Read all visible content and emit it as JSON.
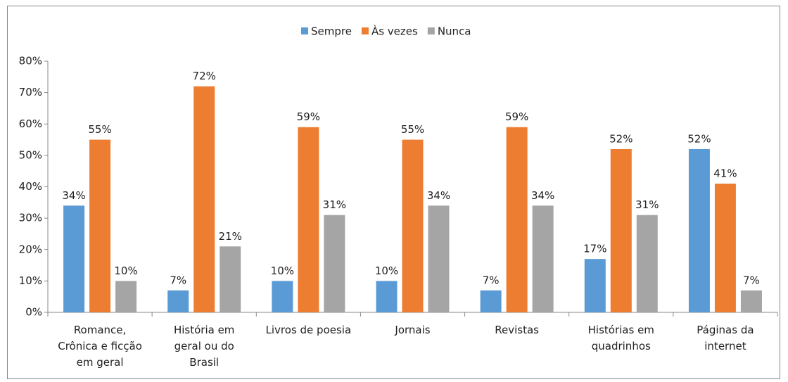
{
  "chart_data": {
    "type": "bar",
    "categories": [
      "Romance, Crônica e ficção em geral",
      "História em geral ou do Brasil",
      "Livros de poesia",
      "Jornais",
      "Revistas",
      "Histórias em quadrinhos",
      "Páginas da internet"
    ],
    "series": [
      {
        "name": "Sempre",
        "color": "#5b9bd5",
        "values": [
          34,
          7,
          10,
          10,
          7,
          17,
          52
        ],
        "value_labels": [
          "34%",
          "7%",
          "10%",
          "10%",
          "7%",
          "17%",
          "52%"
        ]
      },
      {
        "name": "Às vezes",
        "color": "#ed7d31",
        "values": [
          55,
          72,
          59,
          55,
          59,
          52,
          41
        ],
        "value_labels": [
          "55%",
          "72%",
          "59%",
          "55%",
          "59%",
          "52%",
          "41%"
        ]
      },
      {
        "name": "Nunca",
        "color": "#a5a5a5",
        "values": [
          10,
          21,
          31,
          34,
          34,
          31,
          7
        ],
        "value_labels": [
          "10%",
          "21%",
          "31%",
          "34%",
          "34%",
          "31%",
          "7%"
        ]
      }
    ],
    "ylim": [
      0,
      80
    ],
    "yticks": [
      {
        "value": 0,
        "label": "0%"
      },
      {
        "value": 10,
        "label": "10%"
      },
      {
        "value": 20,
        "label": "20%"
      },
      {
        "value": 30,
        "label": "30%"
      },
      {
        "value": 40,
        "label": "40%"
      },
      {
        "value": 50,
        "label": "50%"
      },
      {
        "value": 60,
        "label": "60%"
      },
      {
        "value": 70,
        "label": "70%"
      },
      {
        "value": 80,
        "label": "80%"
      }
    ],
    "grid": false,
    "legend": "top"
  }
}
